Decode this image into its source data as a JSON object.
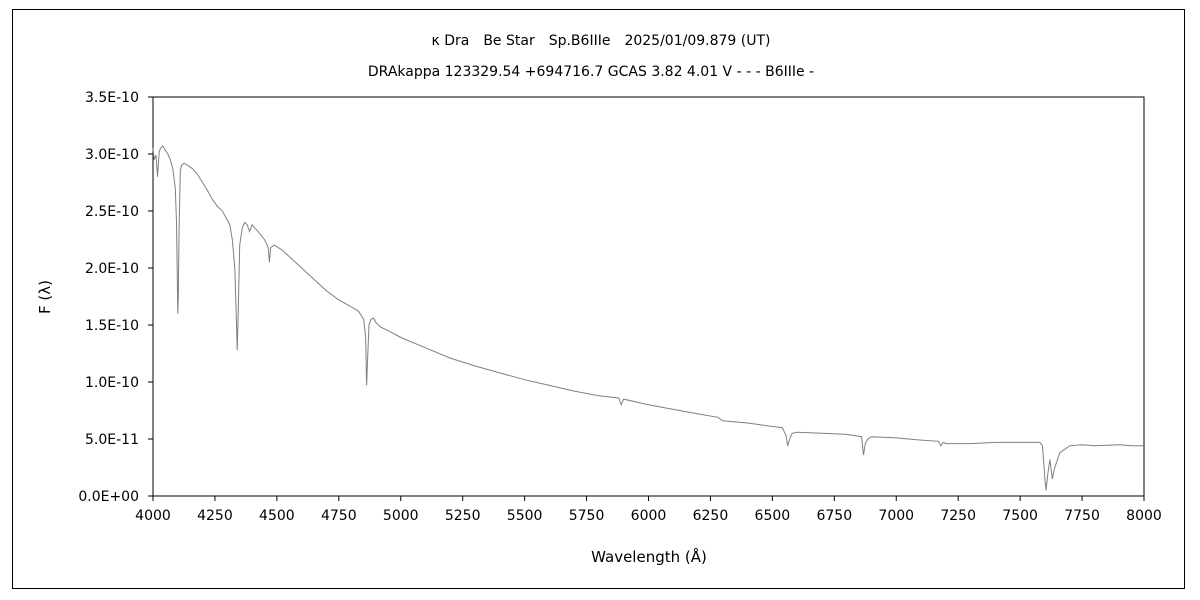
{
  "chart_data": {
    "type": "line",
    "title": "κ Dra　Be Star　Sp.B6IIIe　2025/01/09.879 (UT)",
    "subtitle": "DRAkappa 123329.54 +694716.7 GCAS 3.82 4.01 V - - - B6IIIe -",
    "xlabel": "Wavelength (Å)",
    "ylabel": "F (λ)",
    "xlim": [
      4000,
      8000
    ],
    "ylim": [
      0,
      3.5e-10
    ],
    "grid": false,
    "x_ticks": [
      4000,
      4250,
      4500,
      4750,
      5000,
      5250,
      5500,
      5750,
      6000,
      6250,
      6500,
      6750,
      7000,
      7250,
      7500,
      7750,
      8000
    ],
    "x_tick_labels": [
      "4000",
      "4250",
      "4500",
      "4750",
      "5000",
      "5250",
      "5500",
      "5750",
      "6000",
      "6250",
      "6500",
      "6750",
      "7000",
      "7250",
      "7500",
      "7750",
      "8000"
    ],
    "y_ticks": [
      0,
      5e-11,
      1e-10,
      1.5e-10,
      2e-10,
      2.5e-10,
      3e-10,
      3.5e-10
    ],
    "y_tick_labels": [
      "0.0E+00",
      "5.0E-11",
      "1.0E-10",
      "1.5E-10",
      "2.0E-10",
      "2.5E-10",
      "3.0E-10",
      "3.5E-10"
    ],
    "line_color": "#808080",
    "series": [
      {
        "x": [
          4000,
          4005,
          4012,
          4018,
          4025,
          4030,
          4040,
          4050,
          4060,
          4070,
          4080,
          4090,
          4095,
          4100,
          4102,
          4105,
          4110,
          4115,
          4125,
          4140,
          4160,
          4180,
          4200,
          4220,
          4240,
          4260,
          4280,
          4300,
          4310,
          4320,
          4330,
          4336,
          4340,
          4344,
          4350,
          4360,
          4370,
          4380,
          4390,
          4400,
          4420,
          4450,
          4465,
          4470,
          4475,
          4490,
          4520,
          4550,
          4600,
          4650,
          4700,
          4750,
          4800,
          4830,
          4850,
          4858,
          4862,
          4866,
          4872,
          4880,
          4890,
          4900,
          4920,
          4950,
          5000,
          5100,
          5200,
          5300,
          5400,
          5500,
          5600,
          5700,
          5800,
          5880,
          5890,
          5900,
          6000,
          6100,
          6200,
          6280,
          6300,
          6400,
          6500,
          6540,
          6555,
          6562,
          6570,
          6580,
          6600,
          6700,
          6800,
          6860,
          6868,
          6875,
          6885,
          6900,
          7000,
          7100,
          7170,
          7180,
          7190,
          7200,
          7300,
          7400,
          7500,
          7580,
          7590,
          7595,
          7600,
          7605,
          7612,
          7620,
          7630,
          7640,
          7660,
          7700,
          7750,
          7800,
          7900,
          7950,
          8000
        ],
        "y": [
          3.05e-10,
          2.95e-10,
          2.99e-10,
          2.8e-10,
          3.02e-10,
          3.05e-10,
          3.07e-10,
          3.03e-10,
          3e-10,
          2.95e-10,
          2.87e-10,
          2.7e-10,
          2.4e-10,
          1.6e-10,
          1.75e-10,
          2.3e-10,
          2.85e-10,
          2.9e-10,
          2.92e-10,
          2.9e-10,
          2.87e-10,
          2.82e-10,
          2.75e-10,
          2.68e-10,
          2.6e-10,
          2.54e-10,
          2.5e-10,
          2.42e-10,
          2.38e-10,
          2.25e-10,
          2e-10,
          1.6e-10,
          1.28e-10,
          1.6e-10,
          2.2e-10,
          2.35e-10,
          2.4e-10,
          2.38e-10,
          2.32e-10,
          2.38e-10,
          2.33e-10,
          2.25e-10,
          2.18e-10,
          2.05e-10,
          2.18e-10,
          2.2e-10,
          2.16e-10,
          2.1e-10,
          2e-10,
          1.9e-10,
          1.8e-10,
          1.72e-10,
          1.66e-10,
          1.62e-10,
          1.55e-10,
          1.4e-10,
          9.7e-11,
          1.2e-10,
          1.5e-10,
          1.55e-10,
          1.56e-10,
          1.52e-10,
          1.48e-10,
          1.45e-10,
          1.39e-10,
          1.3e-10,
          1.21e-10,
          1.14e-10,
          1.08e-10,
          1.02e-10,
          9.7e-11,
          9.2e-11,
          8.8e-11,
          8.6e-11,
          8e-11,
          8.5e-11,
          8e-11,
          7.6e-11,
          7.2e-11,
          6.9e-11,
          6.6e-11,
          6.4e-11,
          6.1e-11,
          6e-11,
          5.3e-11,
          4.4e-11,
          5e-11,
          5.5e-11,
          5.6e-11,
          5.5e-11,
          5.4e-11,
          5.2e-11,
          3.6e-11,
          4.6e-11,
          5e-11,
          5.2e-11,
          5.1e-11,
          4.9e-11,
          4.8e-11,
          4.4e-11,
          4.7e-11,
          4.6e-11,
          4.6e-11,
          4.7e-11,
          4.7e-11,
          4.7e-11,
          4.4e-11,
          3e-11,
          1.5e-11,
          5e-12,
          2e-11,
          3.2e-11,
          1.5e-11,
          2.5e-11,
          3.8e-11,
          4.4e-11,
          4.5e-11,
          4.4e-11,
          4.5e-11,
          4.4e-11,
          4.4e-11
        ]
      }
    ]
  }
}
